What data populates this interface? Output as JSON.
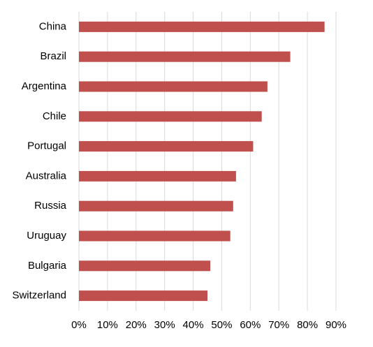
{
  "chart_data": {
    "type": "bar",
    "orientation": "horizontal",
    "categories": [
      "China",
      "Brazil",
      "Argentina",
      "Chile",
      "Portugal",
      "Australia",
      "Russia",
      "Uruguay",
      "Bulgaria",
      "Switzerland"
    ],
    "values": [
      86,
      74,
      66,
      64,
      61,
      55,
      54,
      53,
      46,
      45
    ],
    "color": "#c0504d",
    "xlim": [
      0,
      90
    ],
    "xticks": [
      {
        "value": 0,
        "label": "0%"
      },
      {
        "value": 10,
        "label": "10%"
      },
      {
        "value": 20,
        "label": "20%"
      },
      {
        "value": 30,
        "label": "30%"
      },
      {
        "value": 40,
        "label": "40%"
      },
      {
        "value": 50,
        "label": "50%"
      },
      {
        "value": 60,
        "label": "60%"
      },
      {
        "value": 70,
        "label": "70%"
      },
      {
        "value": 80,
        "label": "80%"
      },
      {
        "value": 90,
        "label": "90%"
      }
    ],
    "grid": true
  }
}
